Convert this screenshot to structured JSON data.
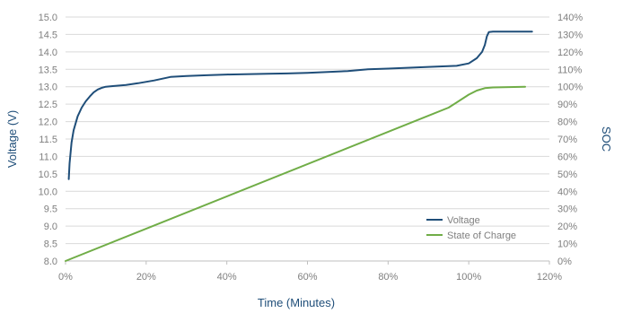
{
  "chart_data": {
    "type": "line",
    "xlabel": "Time (Minutes)",
    "ylabel": "Voltage (V)",
    "y2label": "SOC",
    "x_ticks": [
      "0%",
      "20%",
      "40%",
      "60%",
      "80%",
      "100%",
      "120%"
    ],
    "y_ticks": [
      "8.0",
      "8.5",
      "9.0",
      "9.5",
      "10.0",
      "10.5",
      "11.0",
      "11.5",
      "12.0",
      "12.5",
      "13.0",
      "13.5",
      "14.0",
      "14.5",
      "15.0"
    ],
    "y2_ticks": [
      "0%",
      "10%",
      "20%",
      "30%",
      "40%",
      "50%",
      "60%",
      "70%",
      "80%",
      "90%",
      "100%",
      "110%",
      "120%",
      "130%",
      "140%"
    ],
    "xlim": [
      0,
      120
    ],
    "ylim": [
      8.0,
      15.0
    ],
    "y2lim": [
      0,
      140
    ],
    "grid": "horizontal",
    "legend_position": "bottom-right",
    "series": [
      {
        "name": "Voltage",
        "axis": "left",
        "color": "#1f4e79",
        "x": [
          0.8,
          1.0,
          1.5,
          2,
          3,
          4,
          5,
          6,
          7,
          8,
          9,
          10,
          12,
          15,
          18,
          22,
          26,
          30,
          35,
          40,
          50,
          55,
          60,
          70,
          75,
          80,
          90,
          97,
          100,
          102,
          103.3,
          104,
          104.5,
          105,
          106,
          110,
          115.7
        ],
        "y": [
          10.35,
          10.8,
          11.4,
          11.75,
          12.15,
          12.4,
          12.58,
          12.72,
          12.84,
          12.92,
          12.97,
          13.0,
          13.02,
          13.05,
          13.1,
          13.18,
          13.28,
          13.31,
          13.33,
          13.35,
          13.37,
          13.38,
          13.4,
          13.45,
          13.5,
          13.52,
          13.57,
          13.6,
          13.67,
          13.82,
          14.0,
          14.2,
          14.45,
          14.57,
          14.58,
          14.58,
          14.58
        ]
      },
      {
        "name": "State of Charge",
        "axis": "right",
        "color": "#70ad47",
        "x": [
          0,
          95,
          100,
          102,
          104,
          106,
          110,
          114
        ],
        "y": [
          0,
          88,
          95.5,
          97.8,
          99.2,
          99.6,
          99.8,
          100
        ]
      }
    ]
  }
}
